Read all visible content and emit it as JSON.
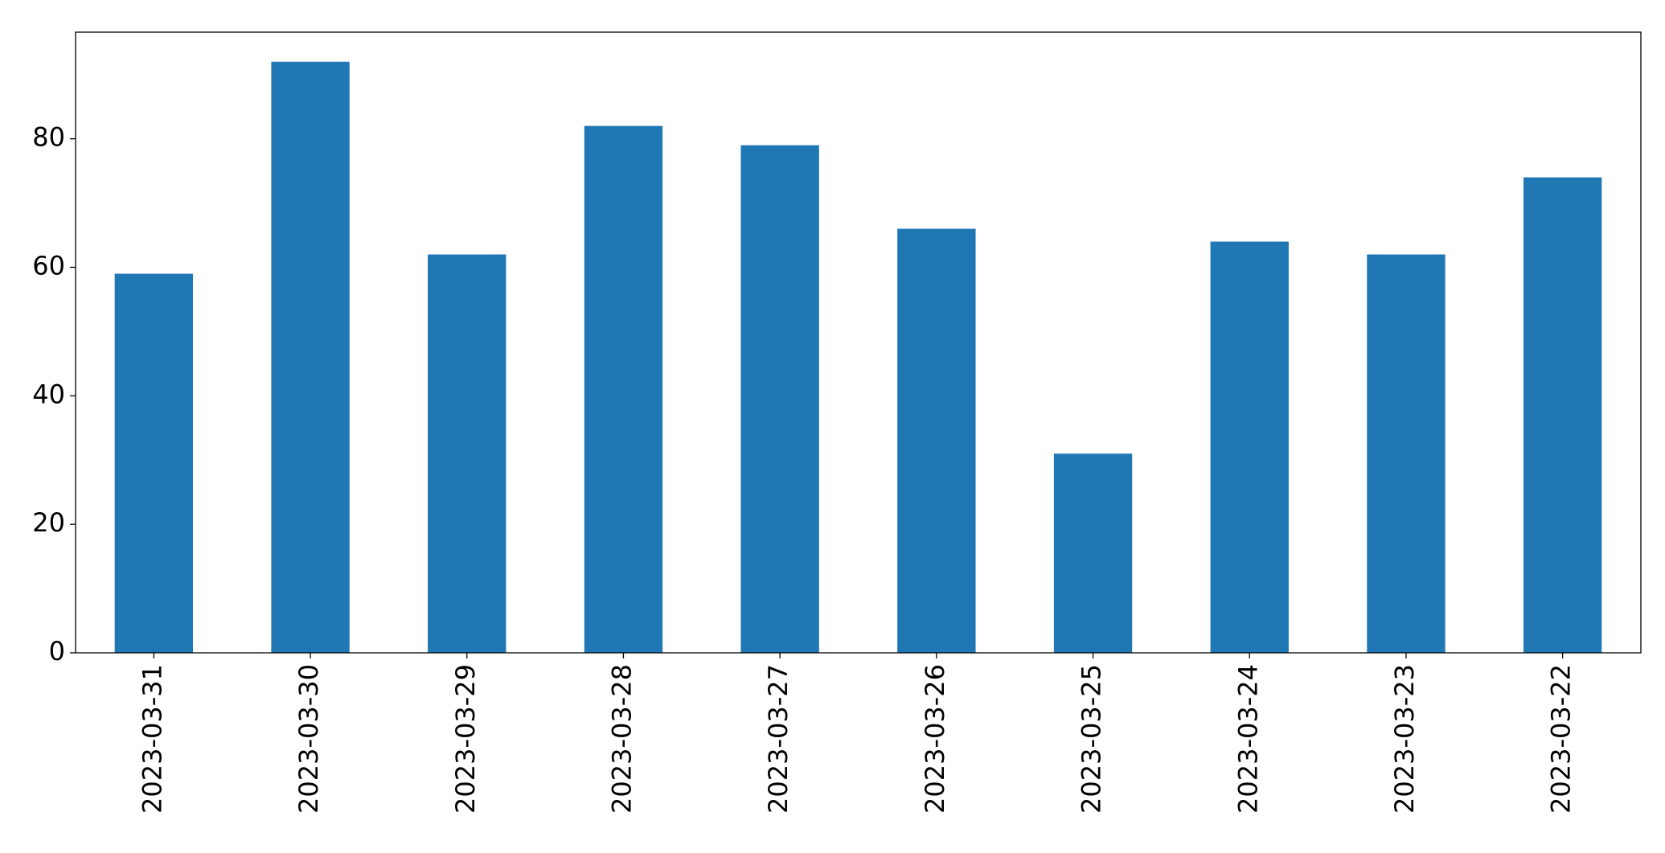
{
  "chart_data": {
    "type": "bar",
    "categories": [
      "2023-03-31",
      "2023-03-30",
      "2023-03-29",
      "2023-03-28",
      "2023-03-27",
      "2023-03-26",
      "2023-03-25",
      "2023-03-24",
      "2023-03-23",
      "2023-03-22"
    ],
    "values": [
      59,
      92,
      62,
      82,
      79,
      66,
      31,
      64,
      62,
      74
    ],
    "color": "#1f77b4",
    "ylim": [
      0,
      96.6
    ],
    "yticks": [
      0,
      20,
      40,
      60,
      80
    ],
    "grid": false
  }
}
